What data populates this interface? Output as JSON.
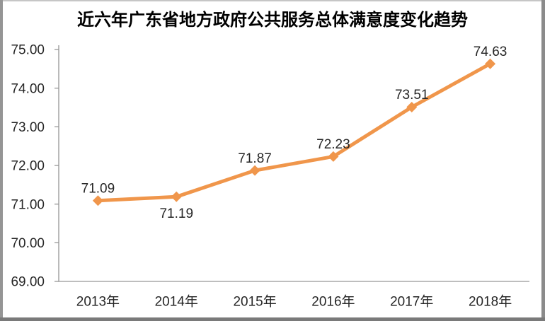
{
  "chart_data": {
    "type": "line",
    "title": "近六年广东省地方政府公共服务总体满意度变化趋势",
    "categories": [
      "2013年",
      "2014年",
      "2015年",
      "2016年",
      "2017年",
      "2018年"
    ],
    "values": [
      71.09,
      71.19,
      71.87,
      72.23,
      73.51,
      74.63
    ],
    "data_labels": [
      "71.09",
      "71.19",
      "71.87",
      "72.23",
      "73.51",
      "74.63"
    ],
    "data_label_positions": [
      "above",
      "below",
      "above",
      "above",
      "above",
      "above"
    ],
    "y_ticks": [
      "75.00",
      "74.00",
      "73.00",
      "72.00",
      "71.00",
      "70.00",
      "69.00"
    ],
    "ylim": [
      69,
      75
    ],
    "xlabel": "",
    "ylabel": "",
    "grid": false,
    "legend": "none",
    "marker": "diamond",
    "colors": {
      "line": "#F0964B",
      "marker": "#F0964B",
      "axis": "#969696",
      "tick_label": "#262626",
      "data_label": "#262626",
      "title": "#000000",
      "background": "#FFFFFF"
    }
  }
}
